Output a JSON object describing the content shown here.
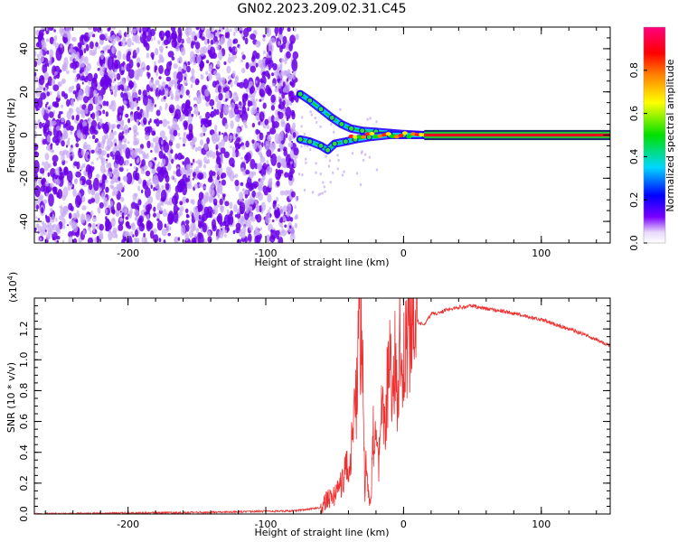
{
  "title": "GN02.2023.209.02.31.C45",
  "colors": {
    "noise": "#6a00e8",
    "noise_light": "#c6a8f2",
    "snr_line": "#ee3030",
    "colormap": [
      "#ffffff",
      "#e8d8fa",
      "#7a00ff",
      "#0000ff",
      "#00d8ff",
      "#00e000",
      "#ffff00",
      "#ff8000",
      "#ff0000",
      "#ff0080"
    ]
  },
  "chart_data": [
    {
      "type": "heatmap",
      "xlabel": "Height of straight line (km)",
      "ylabel": "Frequency (Hz)",
      "xlim": [
        -268,
        150
      ],
      "ylim": [
        -50,
        50
      ],
      "xticks": [
        -200,
        -100,
        0,
        100
      ],
      "xtick_labels": [
        "-200",
        "-100",
        "0",
        "100"
      ],
      "yticks": [
        -40,
        -20,
        0,
        20,
        40
      ],
      "ytick_labels": [
        "-40",
        "-20",
        "0",
        "20",
        "40"
      ],
      "noise_region_x": [
        -268,
        -77
      ],
      "upper_branch": [
        [
          -75,
          19
        ],
        [
          -68,
          16
        ],
        [
          -60,
          12
        ],
        [
          -52,
          8
        ],
        [
          -45,
          5
        ],
        [
          -38,
          3
        ],
        [
          -30,
          2
        ],
        [
          -20,
          1.5
        ],
        [
          -10,
          1
        ],
        [
          0,
          0.5
        ],
        [
          15,
          0
        ]
      ],
      "lower_branch": [
        [
          -75,
          -2
        ],
        [
          -68,
          -3
        ],
        [
          -60,
          -5
        ],
        [
          -55,
          -7
        ],
        [
          -50,
          -4
        ],
        [
          -42,
          -3
        ],
        [
          -35,
          -2
        ],
        [
          -25,
          -1
        ],
        [
          -10,
          0
        ],
        [
          0,
          0
        ],
        [
          15,
          0
        ]
      ],
      "steady_line": {
        "x": [
          15,
          150
        ],
        "y": 0,
        "half_width_hz": 1.5
      },
      "colorbar": {
        "label": "Normalized spectral amplitude",
        "range": [
          0,
          1
        ],
        "ticks": [
          0.0,
          0.2,
          0.4,
          0.6,
          0.8
        ],
        "tick_labels": [
          "0.0",
          "0.2",
          "0.4",
          "0.6",
          "0.8"
        ]
      }
    },
    {
      "type": "line",
      "xlabel": "Height of straight line (km)",
      "ylabel": "SNR (10 * v/v)",
      "y_multiplier_label": "(x10",
      "y_multiplier_exp": "4",
      "y_multiplier_close": ")",
      "xlim": [
        -268,
        150
      ],
      "ylim": [
        0,
        1.4
      ],
      "xticks": [
        -200,
        -100,
        0,
        100
      ],
      "xtick_labels": [
        "-200",
        "-100",
        "0",
        "100"
      ],
      "yticks": [
        0.0,
        0.2,
        0.4,
        0.6,
        0.8,
        1.0,
        1.2
      ],
      "ytick_labels": [
        "0.0",
        "0.2",
        "0.4",
        "0.6",
        "0.8",
        "1.0",
        "1.2"
      ],
      "series": [
        {
          "x": [
            -268,
            -150,
            -80,
            -60,
            -55,
            -50,
            -45,
            -42,
            -40,
            -38,
            -36,
            -34,
            -33,
            -32,
            -31,
            -30,
            -29,
            -28,
            -27,
            -26,
            -25,
            -24,
            -22,
            -20,
            -18,
            -16,
            -14,
            -12,
            -10,
            -8,
            -6,
            -4,
            -2,
            0,
            3,
            6,
            10,
            15,
            20,
            25,
            30,
            40,
            50,
            60,
            70,
            80,
            90,
            100,
            110,
            120,
            130,
            140,
            150
          ],
          "y": [
            0.0,
            0.01,
            0.02,
            0.04,
            0.1,
            0.12,
            0.2,
            0.3,
            0.28,
            0.4,
            0.6,
            0.8,
            1.0,
            1.3,
            1.1,
            1.4,
            0.6,
            0.15,
            0.4,
            0.2,
            0.08,
            0.05,
            0.5,
            0.4,
            0.3,
            0.7,
            0.5,
            0.8,
            1.1,
            0.65,
            1.05,
            0.8,
            1.25,
            1.0,
            1.2,
            1.15,
            1.25,
            1.22,
            1.3,
            1.3,
            1.32,
            1.34,
            1.35,
            1.33,
            1.32,
            1.3,
            1.28,
            1.26,
            1.23,
            1.2,
            1.17,
            1.13,
            1.09
          ]
        }
      ]
    }
  ]
}
